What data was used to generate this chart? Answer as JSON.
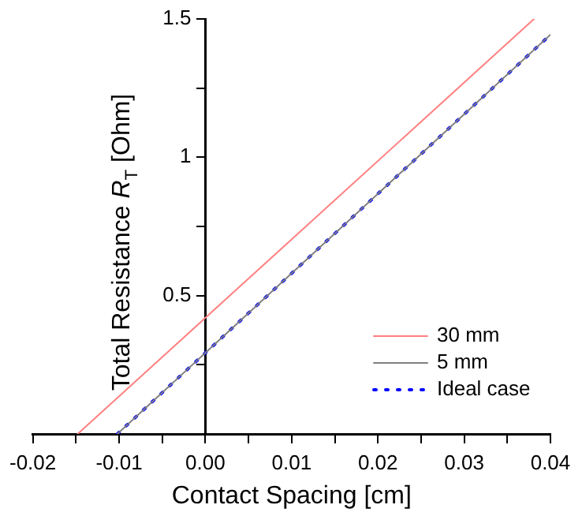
{
  "chart_data": {
    "type": "line",
    "xlabel": "Contact Spacing [cm]",
    "ylabel": "Total Resistance R$_{T}$ [Ohm]",
    "xlim": [
      -0.02,
      0.04
    ],
    "ylim": [
      0,
      1.5
    ],
    "xticks": [
      -0.02,
      {
        "value": -0.015,
        "label": null
      },
      -0.01,
      {
        "value": -0.005,
        "label": null
      },
      {
        "value": 0,
        "label": "0.00"
      },
      {
        "value": 0.005,
        "label": null
      },
      0.01,
      {
        "value": 0.015,
        "label": null
      },
      0.02,
      {
        "value": 0.025,
        "label": null
      },
      0.03,
      {
        "value": 0.035,
        "label": null
      },
      0.04
    ],
    "yticks": [
      {
        "value": 0,
        "label": null
      },
      {
        "value": 0.25,
        "label": null
      },
      0.5,
      {
        "value": 0.75,
        "label": null
      },
      1,
      {
        "value": 1.25,
        "label": null
      },
      1.5
    ],
    "grid": false,
    "legend": "bottom right",
    "marker": "none",
    "series": [
      {
        "name": "30 mm",
        "color": "#ff8080",
        "line_style": "solid",
        "x": [
          -0.0148,
          0.0381
        ],
        "values": [
          0,
          1.5
        ]
      },
      {
        "name": "5 mm",
        "color": "#808080",
        "line_style": "solid",
        "x": [
          -0.0102,
          0.04
        ],
        "values": [
          0,
          1.443
        ]
      },
      {
        "name": "Ideal case",
        "color": "#0000ff",
        "line_style": "dotted",
        "x": [
          -0.0102,
          0.04
        ],
        "values": [
          0,
          1.443
        ]
      }
    ]
  }
}
